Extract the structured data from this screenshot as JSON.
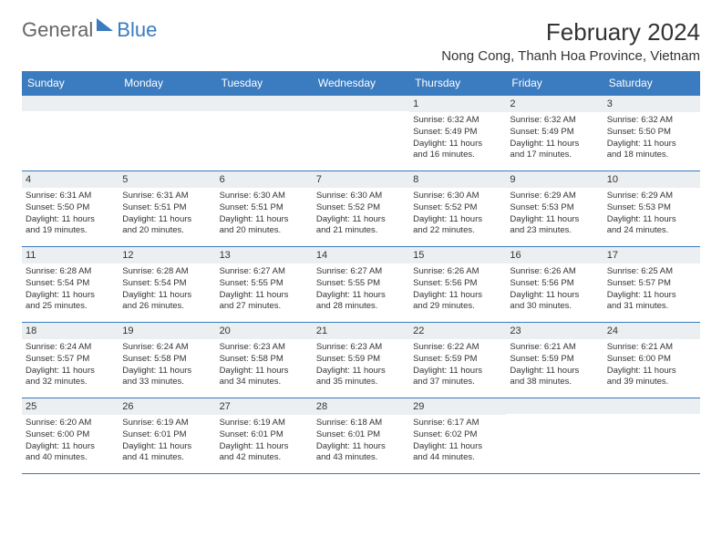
{
  "brand": {
    "part1": "General",
    "part2": "Blue"
  },
  "title": "February 2024",
  "location": "Nong Cong, Thanh Hoa Province, Vietnam",
  "colors": {
    "header_bg": "#3b7bbf",
    "header_text": "#ffffff",
    "daynum_bg": "#eceff1",
    "text": "#333333",
    "row_border": "#3b7bbf",
    "page_bg": "#ffffff"
  },
  "typography": {
    "title_fontsize": 26,
    "location_fontsize": 15,
    "header_fontsize": 12,
    "daynum_fontsize": 11,
    "info_fontsize": 9.5
  },
  "layout": {
    "columns": 7,
    "weeks": 5,
    "cell_min_height": 82
  },
  "day_names": [
    "Sunday",
    "Monday",
    "Tuesday",
    "Wednesday",
    "Thursday",
    "Friday",
    "Saturday"
  ],
  "weeks": [
    [
      null,
      null,
      null,
      null,
      {
        "day": "1",
        "sunrise": "Sunrise: 6:32 AM",
        "sunset": "Sunset: 5:49 PM",
        "daylight1": "Daylight: 11 hours",
        "daylight2": "and 16 minutes."
      },
      {
        "day": "2",
        "sunrise": "Sunrise: 6:32 AM",
        "sunset": "Sunset: 5:49 PM",
        "daylight1": "Daylight: 11 hours",
        "daylight2": "and 17 minutes."
      },
      {
        "day": "3",
        "sunrise": "Sunrise: 6:32 AM",
        "sunset": "Sunset: 5:50 PM",
        "daylight1": "Daylight: 11 hours",
        "daylight2": "and 18 minutes."
      }
    ],
    [
      {
        "day": "4",
        "sunrise": "Sunrise: 6:31 AM",
        "sunset": "Sunset: 5:50 PM",
        "daylight1": "Daylight: 11 hours",
        "daylight2": "and 19 minutes."
      },
      {
        "day": "5",
        "sunrise": "Sunrise: 6:31 AM",
        "sunset": "Sunset: 5:51 PM",
        "daylight1": "Daylight: 11 hours",
        "daylight2": "and 20 minutes."
      },
      {
        "day": "6",
        "sunrise": "Sunrise: 6:30 AM",
        "sunset": "Sunset: 5:51 PM",
        "daylight1": "Daylight: 11 hours",
        "daylight2": "and 20 minutes."
      },
      {
        "day": "7",
        "sunrise": "Sunrise: 6:30 AM",
        "sunset": "Sunset: 5:52 PM",
        "daylight1": "Daylight: 11 hours",
        "daylight2": "and 21 minutes."
      },
      {
        "day": "8",
        "sunrise": "Sunrise: 6:30 AM",
        "sunset": "Sunset: 5:52 PM",
        "daylight1": "Daylight: 11 hours",
        "daylight2": "and 22 minutes."
      },
      {
        "day": "9",
        "sunrise": "Sunrise: 6:29 AM",
        "sunset": "Sunset: 5:53 PM",
        "daylight1": "Daylight: 11 hours",
        "daylight2": "and 23 minutes."
      },
      {
        "day": "10",
        "sunrise": "Sunrise: 6:29 AM",
        "sunset": "Sunset: 5:53 PM",
        "daylight1": "Daylight: 11 hours",
        "daylight2": "and 24 minutes."
      }
    ],
    [
      {
        "day": "11",
        "sunrise": "Sunrise: 6:28 AM",
        "sunset": "Sunset: 5:54 PM",
        "daylight1": "Daylight: 11 hours",
        "daylight2": "and 25 minutes."
      },
      {
        "day": "12",
        "sunrise": "Sunrise: 6:28 AM",
        "sunset": "Sunset: 5:54 PM",
        "daylight1": "Daylight: 11 hours",
        "daylight2": "and 26 minutes."
      },
      {
        "day": "13",
        "sunrise": "Sunrise: 6:27 AM",
        "sunset": "Sunset: 5:55 PM",
        "daylight1": "Daylight: 11 hours",
        "daylight2": "and 27 minutes."
      },
      {
        "day": "14",
        "sunrise": "Sunrise: 6:27 AM",
        "sunset": "Sunset: 5:55 PM",
        "daylight1": "Daylight: 11 hours",
        "daylight2": "and 28 minutes."
      },
      {
        "day": "15",
        "sunrise": "Sunrise: 6:26 AM",
        "sunset": "Sunset: 5:56 PM",
        "daylight1": "Daylight: 11 hours",
        "daylight2": "and 29 minutes."
      },
      {
        "day": "16",
        "sunrise": "Sunrise: 6:26 AM",
        "sunset": "Sunset: 5:56 PM",
        "daylight1": "Daylight: 11 hours",
        "daylight2": "and 30 minutes."
      },
      {
        "day": "17",
        "sunrise": "Sunrise: 6:25 AM",
        "sunset": "Sunset: 5:57 PM",
        "daylight1": "Daylight: 11 hours",
        "daylight2": "and 31 minutes."
      }
    ],
    [
      {
        "day": "18",
        "sunrise": "Sunrise: 6:24 AM",
        "sunset": "Sunset: 5:57 PM",
        "daylight1": "Daylight: 11 hours",
        "daylight2": "and 32 minutes."
      },
      {
        "day": "19",
        "sunrise": "Sunrise: 6:24 AM",
        "sunset": "Sunset: 5:58 PM",
        "daylight1": "Daylight: 11 hours",
        "daylight2": "and 33 minutes."
      },
      {
        "day": "20",
        "sunrise": "Sunrise: 6:23 AM",
        "sunset": "Sunset: 5:58 PM",
        "daylight1": "Daylight: 11 hours",
        "daylight2": "and 34 minutes."
      },
      {
        "day": "21",
        "sunrise": "Sunrise: 6:23 AM",
        "sunset": "Sunset: 5:59 PM",
        "daylight1": "Daylight: 11 hours",
        "daylight2": "and 35 minutes."
      },
      {
        "day": "22",
        "sunrise": "Sunrise: 6:22 AM",
        "sunset": "Sunset: 5:59 PM",
        "daylight1": "Daylight: 11 hours",
        "daylight2": "and 37 minutes."
      },
      {
        "day": "23",
        "sunrise": "Sunrise: 6:21 AM",
        "sunset": "Sunset: 5:59 PM",
        "daylight1": "Daylight: 11 hours",
        "daylight2": "and 38 minutes."
      },
      {
        "day": "24",
        "sunrise": "Sunrise: 6:21 AM",
        "sunset": "Sunset: 6:00 PM",
        "daylight1": "Daylight: 11 hours",
        "daylight2": "and 39 minutes."
      }
    ],
    [
      {
        "day": "25",
        "sunrise": "Sunrise: 6:20 AM",
        "sunset": "Sunset: 6:00 PM",
        "daylight1": "Daylight: 11 hours",
        "daylight2": "and 40 minutes."
      },
      {
        "day": "26",
        "sunrise": "Sunrise: 6:19 AM",
        "sunset": "Sunset: 6:01 PM",
        "daylight1": "Daylight: 11 hours",
        "daylight2": "and 41 minutes."
      },
      {
        "day": "27",
        "sunrise": "Sunrise: 6:19 AM",
        "sunset": "Sunset: 6:01 PM",
        "daylight1": "Daylight: 11 hours",
        "daylight2": "and 42 minutes."
      },
      {
        "day": "28",
        "sunrise": "Sunrise: 6:18 AM",
        "sunset": "Sunset: 6:01 PM",
        "daylight1": "Daylight: 11 hours",
        "daylight2": "and 43 minutes."
      },
      {
        "day": "29",
        "sunrise": "Sunrise: 6:17 AM",
        "sunset": "Sunset: 6:02 PM",
        "daylight1": "Daylight: 11 hours",
        "daylight2": "and 44 minutes."
      },
      null,
      null
    ]
  ]
}
